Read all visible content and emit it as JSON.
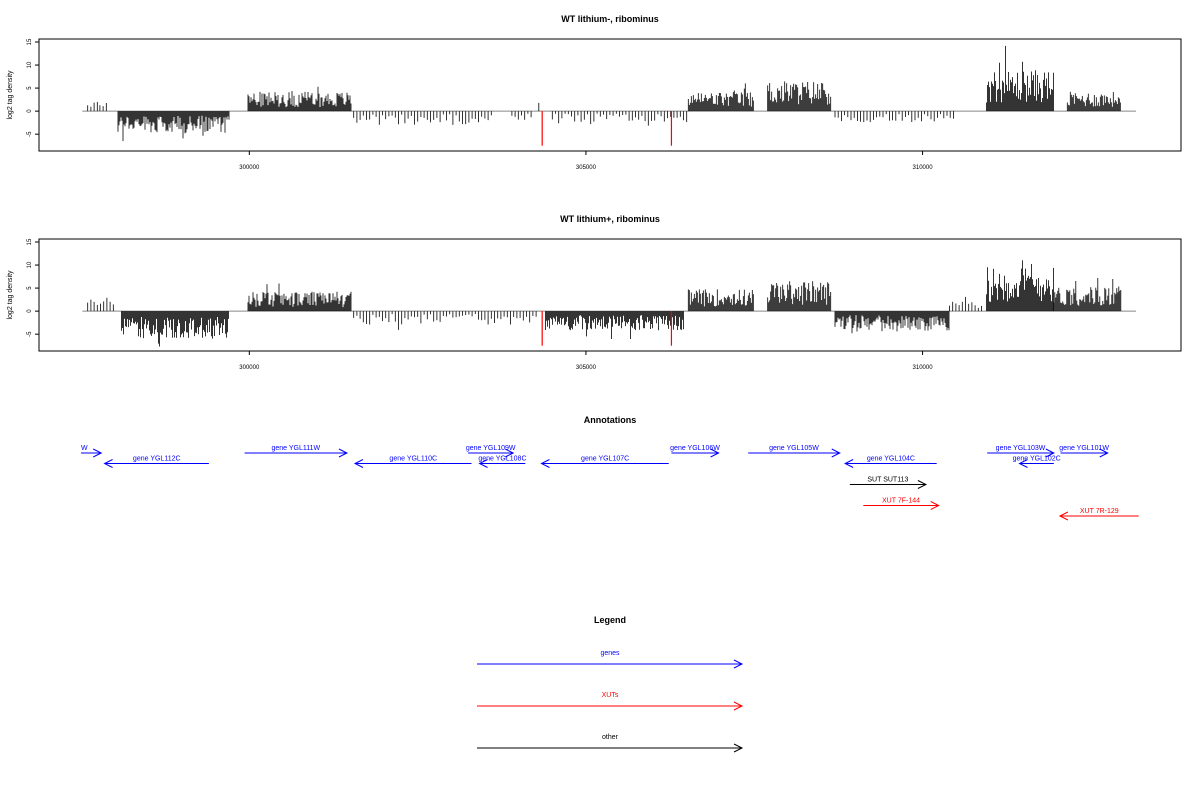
{
  "chart_data": [
    {
      "type": "bar",
      "title": "WT lithium-, ribominus",
      "ylabel": "log2 tag density",
      "xlabel": "",
      "xlim": [
        297500,
        313200
      ],
      "ylim": [
        -8,
        15
      ],
      "yticks": [
        -5,
        0,
        5,
        10,
        15
      ],
      "xticks": [
        300000,
        305000,
        310000
      ],
      "xtick_labels": [
        "300000",
        "305000",
        "310000"
      ],
      "series": [
        {
          "values": [
            {
              "x_start": 297600,
              "x_end": 297760,
              "amp": 2.5,
              "dir": "+"
            },
            {
              "x_start": 297780,
              "x_end": 297900,
              "amp": 1.5,
              "dir": "+"
            },
            {
              "x_start": 298050,
              "x_end": 299700,
              "amp": 4.0,
              "dir": "-"
            },
            {
              "x_start": 299980,
              "x_end": 301520,
              "amp": 3.5,
              "dir": "+"
            },
            {
              "x_start": 301550,
              "x_end": 303600,
              "amp": 2.5,
              "dir": "-"
            },
            {
              "x_start": 303900,
              "x_end": 304200,
              "amp": 2.0,
              "dir": "-"
            },
            {
              "x_start": 304300,
              "x_end": 304340,
              "amp": 2.5,
              "dir": "+"
            },
            {
              "x_start": 304500,
              "x_end": 306500,
              "amp": 2.0,
              "dir": "-"
            },
            {
              "x_start": 306520,
              "x_end": 307500,
              "amp": 3.5,
              "dir": "+"
            },
            {
              "x_start": 307700,
              "x_end": 308650,
              "amp": 5.5,
              "dir": "+"
            },
            {
              "x_start": 308700,
              "x_end": 310500,
              "amp": 2.0,
              "dir": "-"
            },
            {
              "x_start": 310950,
              "x_end": 311950,
              "amp": 7.5,
              "dir": "+"
            },
            {
              "x_start": 312150,
              "x_end": 312950,
              "amp": 3.5,
              "dir": "+"
            }
          ]
        }
      ],
      "highlight_color": "#ff0000",
      "highlights": [
        {
          "x": 304350,
          "y": -7.5
        },
        {
          "x": 306270,
          "y": -7.5
        }
      ]
    },
    {
      "type": "bar",
      "title": "WT lithium+, ribominus",
      "ylabel": "log2 tag density",
      "xlabel": "",
      "xlim": [
        297500,
        313200
      ],
      "ylim": [
        -8,
        15
      ],
      "yticks": [
        -5,
        0,
        5,
        10,
        15
      ],
      "xticks": [
        300000,
        305000,
        310000
      ],
      "xtick_labels": [
        "300000",
        "305000",
        "310000"
      ],
      "series": [
        {
          "values": [
            {
              "x_start": 297600,
              "x_end": 298000,
              "amp": 2.5,
              "dir": "+"
            },
            {
              "x_start": 298100,
              "x_end": 299700,
              "amp": 5.0,
              "dir": "-"
            },
            {
              "x_start": 299980,
              "x_end": 301520,
              "amp": 3.5,
              "dir": "+"
            },
            {
              "x_start": 301550,
              "x_end": 304300,
              "amp": 2.5,
              "dir": "-"
            },
            {
              "x_start": 304400,
              "x_end": 306450,
              "amp": 3.5,
              "dir": "-"
            },
            {
              "x_start": 306520,
              "x_end": 307500,
              "amp": 4.0,
              "dir": "+"
            },
            {
              "x_start": 307700,
              "x_end": 308650,
              "amp": 5.5,
              "dir": "+"
            },
            {
              "x_start": 308700,
              "x_end": 310400,
              "amp": 3.5,
              "dir": "-"
            },
            {
              "x_start": 310400,
              "x_end": 310900,
              "amp": 2.0,
              "dir": "+"
            },
            {
              "x_start": 310950,
              "x_end": 311950,
              "amp": 8.0,
              "dir": "+"
            },
            {
              "x_start": 311950,
              "x_end": 312950,
              "amp": 4.5,
              "dir": "+"
            }
          ]
        }
      ],
      "highlight_color": "#ff0000",
      "highlights": [
        {
          "x": 304350,
          "y": -7.5
        },
        {
          "x": 306270,
          "y": -7.5
        }
      ]
    }
  ],
  "annotations": {
    "title": "Annotations",
    "items": [
      {
        "label": "W",
        "start": 297500,
        "end": 297800,
        "dir": ">",
        "color": "#0000ff",
        "row": 0
      },
      {
        "label": "gene YGL112C",
        "start": 297850,
        "end": 299400,
        "dir": "<",
        "color": "#0000ff",
        "row": 1
      },
      {
        "label": "gene YGL111W",
        "start": 299930,
        "end": 301450,
        "dir": ">",
        "color": "#0000ff",
        "row": 0
      },
      {
        "label": "gene YGL110C",
        "start": 301570,
        "end": 303300,
        "dir": "<",
        "color": "#0000ff",
        "row": 1
      },
      {
        "label": "gene YGL109W",
        "start": 303250,
        "end": 303920,
        "dir": ">",
        "color": "#0000ff",
        "row": 0
      },
      {
        "label": "gene YGL108C",
        "start": 303420,
        "end": 304100,
        "dir": "<",
        "color": "#0000ff",
        "row": 1
      },
      {
        "label": "gene YGL107C",
        "start": 304340,
        "end": 306230,
        "dir": "<",
        "color": "#0000ff",
        "row": 1
      },
      {
        "label": "gene YGL106W",
        "start": 306270,
        "end": 306970,
        "dir": ">",
        "color": "#0000ff",
        "row": 0
      },
      {
        "label": "gene YGL105W",
        "start": 307410,
        "end": 308770,
        "dir": ">",
        "color": "#0000ff",
        "row": 0
      },
      {
        "label": "gene YGL104C",
        "start": 308850,
        "end": 310210,
        "dir": "<",
        "color": "#0000ff",
        "row": 1
      },
      {
        "label": "gene YGL103W",
        "start": 310960,
        "end": 311950,
        "dir": ">",
        "color": "#0000ff",
        "row": 0
      },
      {
        "label": "gene YGL102C",
        "start": 311440,
        "end": 311950,
        "dir": "<",
        "color": "#0000ff",
        "row": 1
      },
      {
        "label": "gene YGL101W",
        "start": 312050,
        "end": 312750,
        "dir": ">",
        "color": "#0000ff",
        "row": 0
      },
      {
        "label": "SUT SUT113",
        "start": 308920,
        "end": 310050,
        "dir": ">",
        "color": "#000000",
        "row": 3
      },
      {
        "label": "XUT 7F-144",
        "start": 309120,
        "end": 310240,
        "dir": ">",
        "color": "#ff0000",
        "row": 5
      },
      {
        "label": "XUT 7R-129",
        "start": 312040,
        "end": 313210,
        "dir": "<",
        "color": "#ff0000",
        "row": 6
      }
    ]
  },
  "legend": {
    "title": "Legend",
    "items": [
      {
        "label": "genes",
        "color": "#0000ff"
      },
      {
        "label": "XUTs",
        "color": "#ff0000"
      },
      {
        "label": "other",
        "color": "#000000"
      }
    ]
  }
}
